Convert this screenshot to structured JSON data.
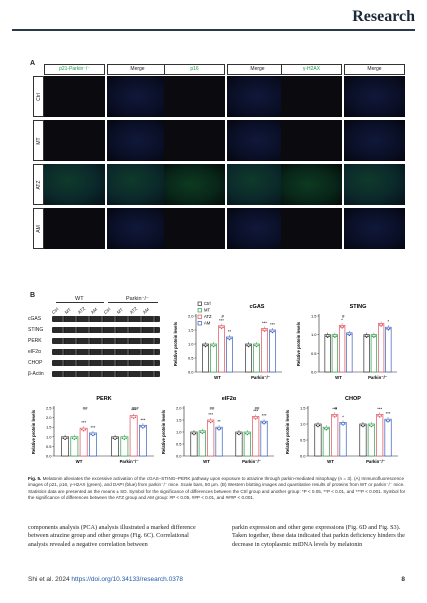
{
  "journal": "Research",
  "panel_a": {
    "letter": "A",
    "headers": [
      "p21-Parkin⁻/⁻",
      "Merge",
      "p16",
      "Merge",
      "γ-H2AX",
      "Merge"
    ],
    "rows": [
      "Ctrl",
      "MT",
      "ATZ",
      "AM"
    ]
  },
  "panel_b": {
    "letter": "B",
    "groups": [
      "WT",
      "Parkin⁻/⁻"
    ],
    "lanes": [
      "Ctrl",
      "MT",
      "ATZ",
      "AM",
      "Ctrl",
      "MT",
      "ATZ",
      "AM"
    ],
    "blots": [
      "cGAS",
      "STING",
      "PERK",
      "eIF2α",
      "CHOP",
      "β-Actin"
    ]
  },
  "chart_data": [
    {
      "type": "bar",
      "title": "cGAS",
      "ylabel": "Relative protein levels",
      "ylim": [
        0,
        2.0
      ],
      "yticks": [
        "0.0",
        "0.5",
        "1.0",
        "1.5",
        "2.0"
      ],
      "categories": [
        "WT",
        "Parkin⁻/⁻"
      ],
      "legend": [
        "Ctrl",
        "MT",
        "ATZ",
        "AM"
      ],
      "series": [
        {
          "name": "Ctrl",
          "values": [
            1.0,
            1.0
          ]
        },
        {
          "name": "MT",
          "values": [
            1.0,
            1.0
          ]
        },
        {
          "name": "ATZ",
          "values": [
            1.65,
            1.55
          ]
        },
        {
          "name": "AM",
          "values": [
            1.25,
            1.5
          ]
        }
      ],
      "annotations": [
        "#",
        "***",
        "**",
        "***",
        "***"
      ],
      "colors": [
        "#333333",
        "#2e9e4a",
        "#e0505a",
        "#3a5fc0"
      ]
    },
    {
      "type": "bar",
      "title": "STING",
      "ylabel": "Relative protein levels",
      "ylim": [
        0,
        1.5
      ],
      "yticks": [
        "0.0",
        "0.5",
        "1.0",
        "1.5"
      ],
      "categories": [
        "WT",
        "Parkin⁻/⁻"
      ],
      "series": [
        {
          "name": "Ctrl",
          "values": [
            1.0,
            1.0
          ]
        },
        {
          "name": "MT",
          "values": [
            1.0,
            1.0
          ]
        },
        {
          "name": "ATZ",
          "values": [
            1.25,
            1.3
          ]
        },
        {
          "name": "AM",
          "values": [
            1.05,
            1.2
          ]
        }
      ],
      "annotations": [
        "#",
        "*",
        "*"
      ]
    },
    {
      "type": "bar",
      "title": "PERK",
      "ylabel": "Relative protein levels",
      "ylim": [
        0,
        2.5
      ],
      "yticks": [
        "0.0",
        "0.5",
        "1.0",
        "1.5",
        "2.0",
        "2.5"
      ],
      "categories": [
        "WT",
        "Parkin⁻/⁻"
      ],
      "series": [
        {
          "name": "Ctrl",
          "values": [
            1.0,
            1.0
          ]
        },
        {
          "name": "MT",
          "values": [
            1.0,
            1.0
          ]
        },
        {
          "name": "ATZ",
          "values": [
            1.45,
            2.1
          ]
        },
        {
          "name": "AM",
          "values": [
            1.2,
            1.6
          ]
        }
      ],
      "annotations": [
        "##",
        "***",
        "***",
        "###",
        "***",
        "***"
      ]
    },
    {
      "type": "bar",
      "title": "eIF2α",
      "ylabel": "Relative protein levels",
      "ylim": [
        0,
        2.0
      ],
      "yticks": [
        "0.0",
        "0.5",
        "1.0",
        "1.5",
        "2.0"
      ],
      "categories": [
        "WT",
        "Parkin⁻/⁻"
      ],
      "series": [
        {
          "name": "Ctrl",
          "values": [
            1.0,
            1.0
          ]
        },
        {
          "name": "MT",
          "values": [
            1.05,
            1.0
          ]
        },
        {
          "name": "ATZ",
          "values": [
            1.5,
            1.65
          ]
        },
        {
          "name": "AM",
          "values": [
            1.2,
            1.45
          ]
        }
      ],
      "annotations": [
        "##",
        "***",
        "**",
        "##",
        "***",
        "***"
      ]
    },
    {
      "type": "bar",
      "title": "CHOP",
      "ylabel": "Relative protein levels",
      "ylim": [
        0,
        1.5
      ],
      "yticks": [
        "0.0",
        "0.5",
        "1.0",
        "1.5"
      ],
      "categories": [
        "WT",
        "Parkin⁻/⁻"
      ],
      "series": [
        {
          "name": "Ctrl",
          "values": [
            1.0,
            1.0
          ]
        },
        {
          "name": "MT",
          "values": [
            0.9,
            1.0
          ]
        },
        {
          "name": "ATZ",
          "values": [
            1.3,
            1.3
          ]
        },
        {
          "name": "AM",
          "values": [
            1.05,
            1.15
          ]
        }
      ],
      "annotations": [
        "#",
        "***",
        "*",
        "***",
        "***"
      ]
    }
  ],
  "caption": {
    "lead": "Fig. 5.",
    "text": "Melatonin alleviates the excessive activation of the cGAS–STING–PERK pathway upon exposure to atrazine through parkin-mediated mitophagy (n = 3). (A) Immunofluorescence images of p21, p16, γ-H2AX (green), and DAPI (blue) from parkin⁻/⁻ mice. Scale bars, 50 μm. (B) Western blotting images and quantitative results of proteins from WT or parkin⁻/⁻ mice. Statistics data are presented as the means ± SD. Symbol for the significance of differences between the Ctrl group and another group: *P < 0.05, **P < 0.01, and ***P < 0.001. Symbol for the significance of differences between the ATZ group and AM group: #P < 0.05, ##P < 0.01, and ###P < 0.001."
  },
  "body": {
    "left": "components analysis (PCA) analysis illustrated a marked difference between atrazine group and other groups (Fig. 6C). Correlational analysis revealed a negative correlation between",
    "right": "parkin expression and other gene expressions (Fig. 6D and Fig. S3). Taken together, these data indicated that parkin deficiency hinders the decrease in cytoplasmic mtDNA levels by melatonin"
  },
  "footer": {
    "authors": "Shi et al. 2024",
    "doi": "https://doi.org/10.34133/research.0378",
    "page": "8"
  }
}
